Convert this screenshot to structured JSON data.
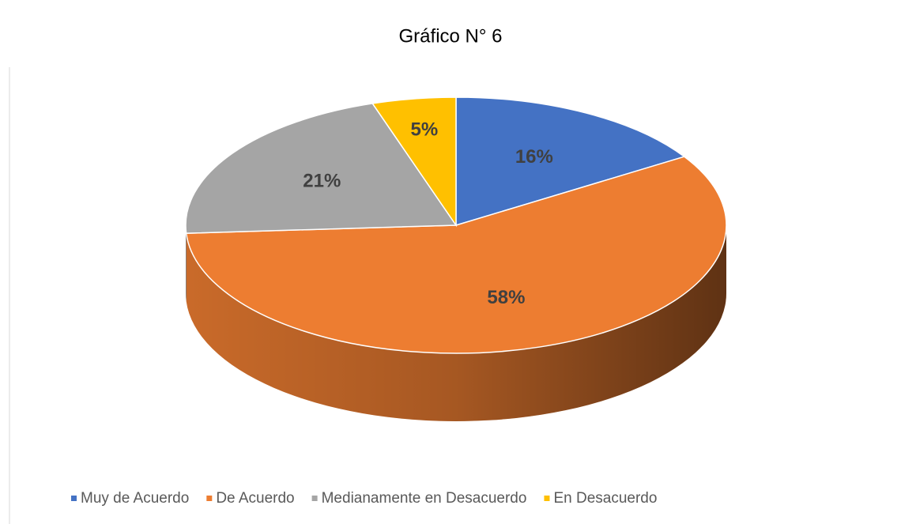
{
  "chart_data": {
    "type": "pie",
    "title": "Gráfico N° 6",
    "three_d": true,
    "categories": [
      "Muy de Acuerdo",
      "De Acuerdo",
      "Medianamente en Desacuerdo",
      "En Desacuerdo"
    ],
    "values": [
      16,
      58,
      21,
      5
    ],
    "value_labels": [
      "16%",
      "58%",
      "21%",
      "5%"
    ],
    "colors": [
      "#4472c4",
      "#ed7d31",
      "#a5a5a5",
      "#ffc000"
    ],
    "legend": "bottom"
  }
}
